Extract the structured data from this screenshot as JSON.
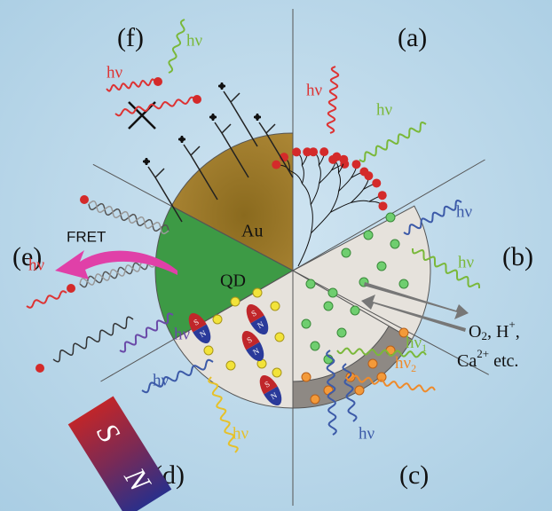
{
  "panels": [
    "(a)",
    "(b)",
    "(c)",
    "(d)",
    "(e)",
    "(f)"
  ],
  "core_labels": [
    "Au",
    "QD"
  ],
  "fret": "FRET",
  "photon_labels": [
    "hν",
    "hν",
    "hν",
    "hν",
    "hν",
    "hν",
    "hν",
    "hν",
    "hν",
    "hν",
    "hν"
  ],
  "emission_pair": [
    {
      "base": "hν",
      "sub": "1"
    },
    {
      "base": "hν",
      "sub": "2"
    }
  ],
  "analytes": {
    "line1": [
      "O",
      "2",
      ", H",
      "+",
      ","
    ],
    "line2": [
      "Ca",
      "2+",
      " etc."
    ]
  },
  "magnet": {
    "south": "S",
    "north": "N"
  },
  "particle_poles": [
    "S",
    "N"
  ]
}
